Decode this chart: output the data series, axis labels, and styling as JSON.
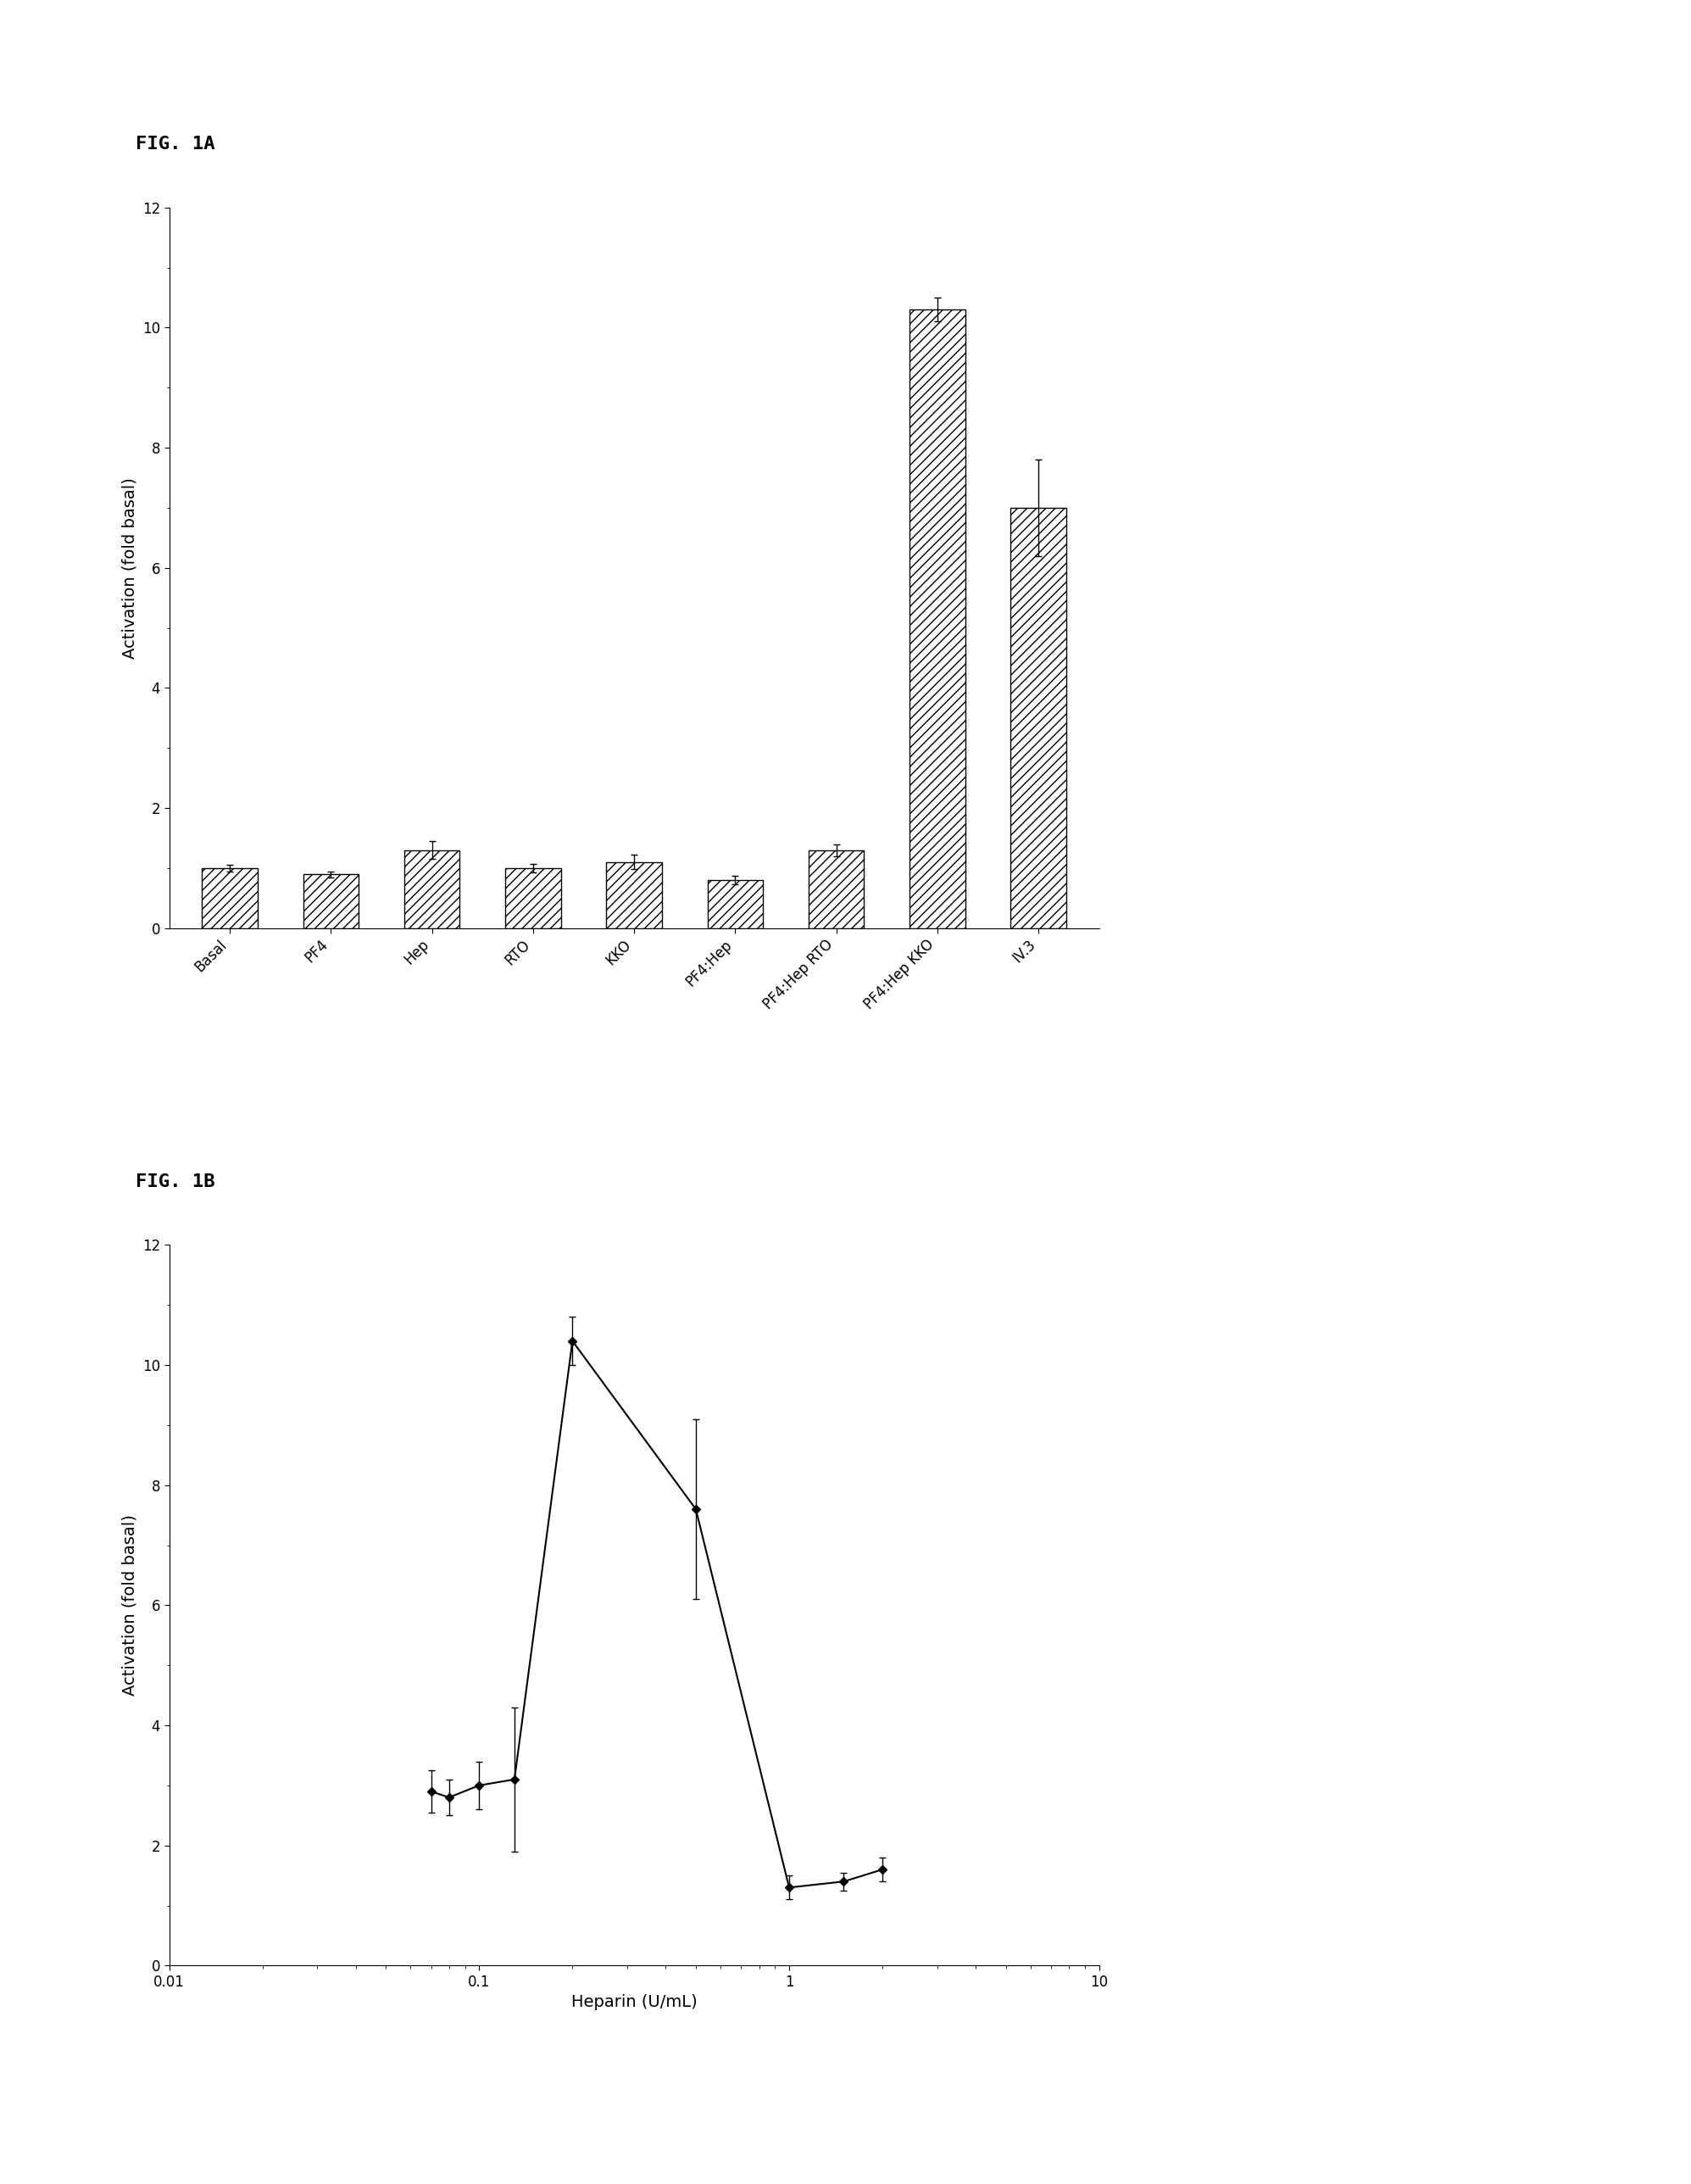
{
  "fig1a": {
    "title": "FIG. 1A",
    "categories": [
      "Basal",
      "PF4",
      "Hep",
      "RTO",
      "KKO",
      "PF4:Hep",
      "PF4:Hep RTO",
      "PF4:Hep KKO",
      "IV.3"
    ],
    "values": [
      1.0,
      0.9,
      1.3,
      1.0,
      1.1,
      0.8,
      1.3,
      10.3,
      7.0
    ],
    "errors": [
      0.05,
      0.05,
      0.15,
      0.07,
      0.12,
      0.07,
      0.1,
      0.2,
      0.8
    ],
    "ylabel": "Activation (fold basal)",
    "ylim": [
      0,
      12
    ],
    "yticks": [
      0,
      2,
      4,
      6,
      8,
      10,
      12
    ],
    "bar_width": 0.55,
    "hatch": "///",
    "bar_color": "white",
    "edge_color": "black"
  },
  "fig1b": {
    "title": "FIG. 1B",
    "x": [
      0.07,
      0.08,
      0.1,
      0.13,
      0.2,
      0.5,
      1.0,
      1.5,
      2.0
    ],
    "y": [
      2.9,
      2.8,
      3.0,
      3.1,
      10.4,
      7.6,
      1.3,
      1.4,
      1.6
    ],
    "yerr": [
      0.35,
      0.3,
      0.4,
      1.2,
      0.4,
      1.5,
      0.2,
      0.15,
      0.2
    ],
    "xlabel": "Heparin (U/mL)",
    "ylabel": "Activation (fold basal)",
    "xlim": [
      0.01,
      10
    ],
    "ylim": [
      0,
      12
    ],
    "yticks": [
      0,
      2,
      4,
      6,
      8,
      10,
      12
    ],
    "line_color": "black",
    "marker": "D",
    "marker_size": 5,
    "marker_color": "black"
  },
  "background_color": "white",
  "figure_label_fontsize": 16,
  "axis_label_fontsize": 14,
  "tick_fontsize": 12
}
